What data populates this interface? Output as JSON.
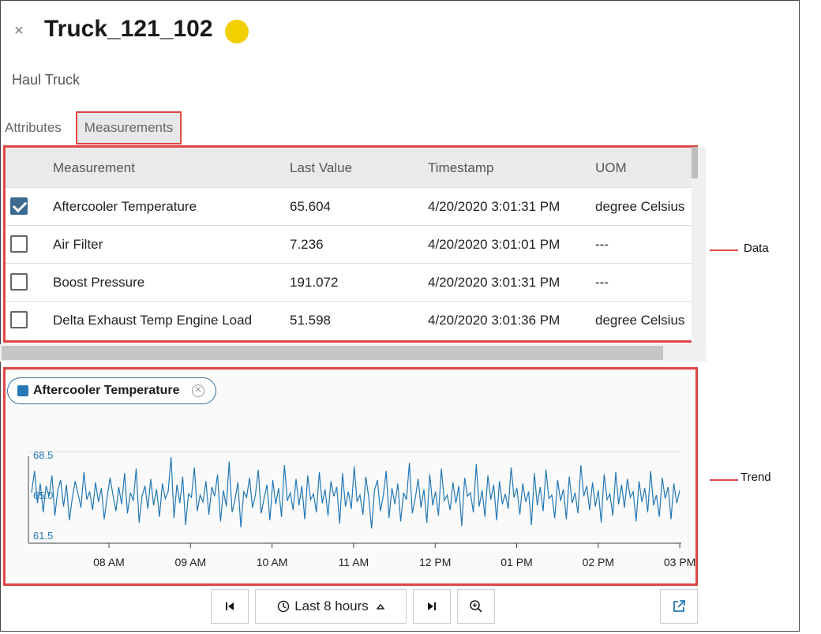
{
  "header": {
    "title": "Truck_121_102",
    "subtitle": "Haul Truck",
    "close_glyph": "×",
    "status_color": "#f2cf00"
  },
  "tabs": [
    {
      "label": "Attributes"
    },
    {
      "label": "Measurements"
    }
  ],
  "table": {
    "columns": [
      "Measurement",
      "Last Value",
      "Timestamp",
      "UOM"
    ],
    "rows": [
      {
        "checked": true,
        "name": "Aftercooler Temperature",
        "value": "65.604",
        "timestamp": "4/20/2020 3:01:31 PM",
        "uom": "degree Celsius"
      },
      {
        "checked": false,
        "name": "Air Filter",
        "value": "7.236",
        "timestamp": "4/20/2020 3:01:01 PM",
        "uom": "---"
      },
      {
        "checked": false,
        "name": "Boost Pressure",
        "value": "191.072",
        "timestamp": "4/20/2020 3:01:31 PM",
        "uom": "---"
      },
      {
        "checked": false,
        "name": "Delta Exhaust Temp Engine Load",
        "value": "51.598",
        "timestamp": "4/20/2020 3:01:36 PM",
        "uom": "degree Celsius"
      }
    ]
  },
  "trend": {
    "chip_label": "Aftercooler Temperature",
    "chip_color": "#2378b5"
  },
  "chart_data": {
    "type": "line",
    "title": "",
    "xlabel": "",
    "ylabel": "",
    "y_ticks": [
      "68.5",
      "65.0",
      "61.5"
    ],
    "ylim": [
      61.5,
      68.5
    ],
    "x_ticks": [
      "08 AM",
      "09 AM",
      "10 AM",
      "11 AM",
      "12 PM",
      "01 PM",
      "02 PM",
      "03 PM"
    ],
    "series": [
      {
        "color": "#2378b5",
        "values": [
          65.2,
          67.1,
          64.3,
          66.0,
          63.5,
          65.8,
          64.9,
          66.7,
          63.2,
          65.4,
          66.3,
          64.0,
          65.9,
          62.8,
          64.7,
          66.2,
          65.1,
          63.9,
          67.0,
          64.6,
          65.3,
          63.7,
          66.1,
          64.4,
          65.6,
          62.9,
          64.8,
          66.5,
          65.0,
          63.6,
          65.7,
          64.2,
          66.9,
          63.4,
          65.2,
          64.5,
          67.3,
          62.6,
          64.9,
          65.8,
          63.8,
          66.4,
          64.1,
          65.5,
          63.1,
          66.0,
          64.7,
          65.3,
          68.3,
          63.0,
          65.9,
          64.3,
          66.6,
          62.4,
          65.1,
          64.8,
          67.4,
          63.6,
          65.0,
          64.4,
          66.2,
          63.3,
          65.7,
          64.9,
          66.8,
          62.7,
          65.4,
          64.0,
          67.9,
          63.5,
          64.6,
          66.1,
          62.2,
          65.3,
          64.8,
          66.5,
          63.9,
          65.0,
          67.2,
          63.4,
          64.7,
          65.9,
          62.8,
          66.3,
          64.2,
          65.6,
          63.1,
          67.6,
          64.5,
          65.2,
          63.7,
          66.4,
          64.1,
          65.8,
          62.9,
          66.7,
          64.6,
          65.1,
          63.5,
          67.0,
          64.3,
          65.5,
          63.2,
          66.2,
          64.9,
          65.7,
          62.5,
          66.9,
          64.0,
          65.3,
          63.8,
          67.5,
          64.4,
          65.0,
          63.3,
          66.6,
          64.8,
          62.1,
          65.4,
          66.3,
          63.6,
          64.9,
          67.1,
          63.0,
          65.6,
          64.2,
          66.0,
          62.7,
          65.2,
          64.6,
          67.8,
          63.4,
          64.7,
          66.4,
          63.9,
          65.5,
          62.6,
          66.8,
          64.1,
          65.3,
          63.2,
          67.3,
          64.5,
          65.0,
          63.7,
          66.1,
          64.3,
          65.8,
          62.3,
          66.5,
          64.9,
          65.2,
          63.5,
          67.7,
          64.0,
          65.4,
          63.1,
          66.7,
          64.6,
          65.9,
          62.8,
          66.2,
          64.2,
          65.1,
          63.8,
          67.4,
          64.8,
          65.6,
          63.3,
          66.0,
          64.4,
          65.3,
          62.4,
          66.9,
          64.1,
          65.7,
          63.6,
          67.2,
          64.7,
          65.0,
          63.0,
          66.3,
          64.5,
          65.5,
          62.9,
          66.6,
          64.3,
          65.2,
          63.4,
          67.6,
          64.9,
          65.8,
          63.7,
          66.1,
          64.0,
          65.4,
          62.6,
          66.8,
          64.6,
          65.1,
          63.2,
          67.0,
          64.2,
          65.9,
          63.9,
          66.4,
          64.8,
          65.3,
          62.7,
          66.2,
          64.4,
          65.6,
          63.5,
          67.1,
          64.1,
          65.0,
          63.1,
          66.5,
          64.7,
          65.7,
          62.9,
          66.0,
          64.3,
          65.4
        ],
        "range_start": 0,
        "range_end": 1
      }
    ],
    "grid": false,
    "legend": "chip-top-left"
  },
  "annotations": {
    "data_label": "Data",
    "trend_label": "Trend",
    "color": "#e04646"
  },
  "controls": {
    "first_icon": "skip-back-icon",
    "range_label": "Last 8 hours",
    "range_icon": "clock-icon",
    "last_icon": "skip-forward-icon",
    "zoom_icon": "zoom-in-icon",
    "popout_icon": "external-link-icon"
  }
}
